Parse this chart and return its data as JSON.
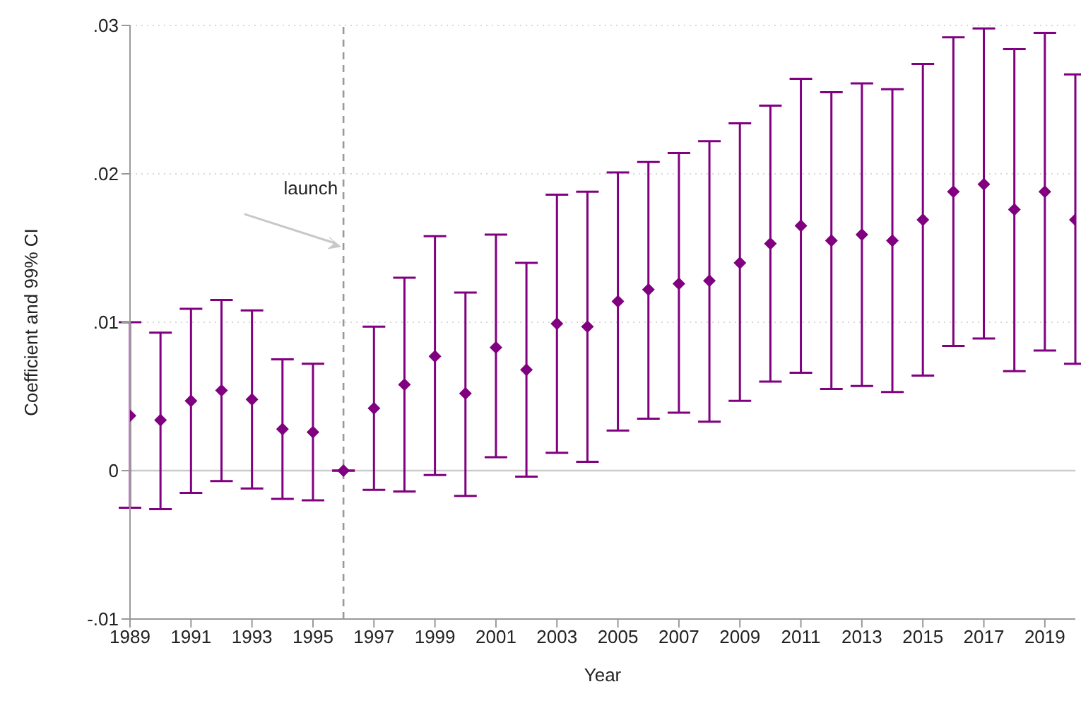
{
  "chart_data": {
    "type": "scatter",
    "xlabel": "Year",
    "ylabel": "Coefficient and 99% CI",
    "x": [
      1989,
      1990,
      1991,
      1992,
      1993,
      1994,
      1995,
      1996,
      1997,
      1998,
      1999,
      2000,
      2001,
      2002,
      2003,
      2004,
      2005,
      2006,
      2007,
      2008,
      2009,
      2010,
      2011,
      2012,
      2013,
      2014,
      2015,
      2016,
      2017,
      2018,
      2019,
      2020
    ],
    "series": [
      {
        "color": "#800080",
        "values": [
          0.0037,
          0.0034,
          0.0047,
          0.0054,
          0.0048,
          0.0028,
          0.0026,
          0,
          0.0042,
          0.0058,
          0.0077,
          0.0052,
          0.0083,
          0.0068,
          0.0099,
          0.0097,
          0.0114,
          0.0122,
          0.0126,
          0.0128,
          0.014,
          0.0153,
          0.0165,
          0.0155,
          0.0159,
          0.0155,
          0.0169,
          0.0188,
          0.0193,
          0.0176,
          0.0188,
          0.0169
        ],
        "errors": [
          [
            -0.0025,
            0.01
          ],
          [
            -0.0026,
            0.0093
          ],
          [
            -0.0015,
            0.0109
          ],
          [
            -0.0007,
            0.0115
          ],
          [
            -0.0012,
            0.0108
          ],
          [
            -0.0019,
            0.0075
          ],
          [
            -0.002,
            0.0072
          ],
          null,
          [
            -0.0013,
            0.0097
          ],
          [
            -0.0014,
            0.013
          ],
          [
            -0.0003,
            0.0158
          ],
          [
            -0.0017,
            0.012
          ],
          [
            0.0009,
            0.0159
          ],
          [
            -0.0004,
            0.014
          ],
          [
            0.0012,
            0.0186
          ],
          [
            0.0006,
            0.0188
          ],
          [
            0.0027,
            0.0201
          ],
          [
            0.0035,
            0.0208
          ],
          [
            0.0039,
            0.0214
          ],
          [
            0.0033,
            0.0222
          ],
          [
            0.0047,
            0.0234
          ],
          [
            0.006,
            0.0246
          ],
          [
            0.0066,
            0.0264
          ],
          [
            0.0055,
            0.0255
          ],
          [
            0.0057,
            0.0261
          ],
          [
            0.0053,
            0.0257
          ],
          [
            0.0064,
            0.0274
          ],
          [
            0.0084,
            0.0292
          ],
          [
            0.0089,
            0.0298
          ],
          [
            0.0067,
            0.0284
          ],
          [
            0.0081,
            0.0295
          ],
          [
            0.0072,
            0.0267
          ]
        ]
      }
    ],
    "marker": "diamond",
    "grid": "y",
    "legend": false,
    "xlim": [
      1989,
      2020
    ],
    "xticks": [
      1989,
      1991,
      1993,
      1995,
      1997,
      1999,
      2001,
      2003,
      2005,
      2007,
      2009,
      2011,
      2013,
      2015,
      2017,
      2019
    ],
    "ylim": [
      -0.01,
      0.03
    ],
    "yticks": [
      {
        "value": -0.01,
        "label": "-.01"
      },
      {
        "value": 0,
        "label": "0"
      },
      {
        "value": 0.01,
        "label": ".01"
      },
      {
        "value": 0.02,
        "label": ".02"
      },
      {
        "value": 0.03,
        "label": ".03"
      }
    ],
    "ref_lines": [
      {
        "axis": "x",
        "value": 1996,
        "line_style": "dashed",
        "color": "#999999"
      },
      {
        "axis": "y",
        "value": 0,
        "line_style": "solid",
        "color": "#cccccc"
      }
    ],
    "annotations": [
      {
        "text": "launch",
        "x": 1996,
        "y": 0.015
      }
    ]
  }
}
